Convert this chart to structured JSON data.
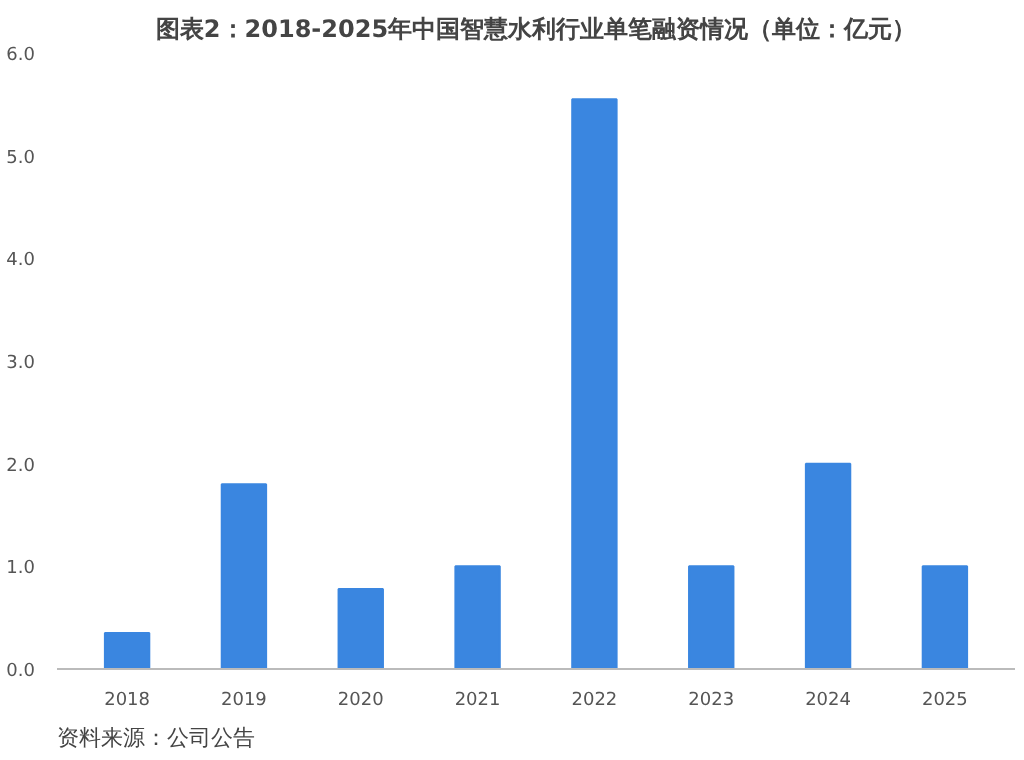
{
  "chart_data": {
    "type": "bar",
    "title": "图表2：2018-2025年中国智慧水利行业单笔融资情况（单位：亿元）",
    "categories": [
      "2018",
      "2019",
      "2020",
      "2021",
      "2022",
      "2023",
      "2024",
      "2025"
    ],
    "values": [
      0.35,
      1.8,
      0.78,
      1.0,
      5.55,
      1.0,
      2.0,
      1.0
    ],
    "color": "#3a86e0",
    "ylim": [
      0,
      6
    ],
    "yticks": [
      {
        "value": 0,
        "label": "0.0"
      },
      {
        "value": 1,
        "label": "1.0"
      },
      {
        "value": 2,
        "label": "2.0"
      },
      {
        "value": 3,
        "label": "3.0"
      },
      {
        "value": 4,
        "label": "4.0"
      },
      {
        "value": 5,
        "label": "5.0"
      },
      {
        "value": 6,
        "label": "6.0"
      }
    ],
    "grid": false,
    "annotations": [
      "资料来源：公司公告"
    ]
  }
}
